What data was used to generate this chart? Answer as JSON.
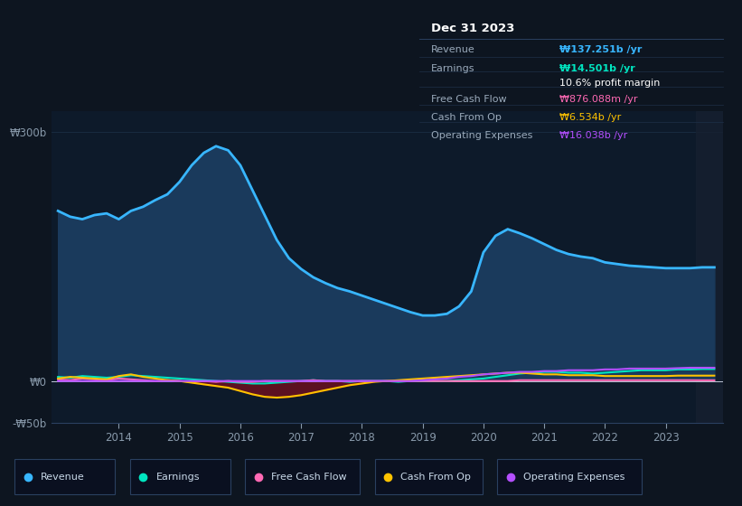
{
  "background_color": "#0d1520",
  "plot_bg_color": "#0d1a2a",
  "grid_color": "#1a2e44",
  "title_box": {
    "date": "Dec 31 2023",
    "rows": [
      {
        "label": "Revenue",
        "value": "₩137.251b /yr",
        "value_color": "#38b6ff"
      },
      {
        "label": "Earnings",
        "value": "₩14.501b /yr",
        "value_color": "#00e5c0"
      },
      {
        "label": "",
        "value": "10.6% profit margin",
        "value_color": "#ffffff"
      },
      {
        "label": "Free Cash Flow",
        "value": "₩876.088m /yr",
        "value_color": "#ff69b4"
      },
      {
        "label": "Cash From Op",
        "value": "₩6.534b /yr",
        "value_color": "#ffc300"
      },
      {
        "label": "Operating Expenses",
        "value": "₩16.038b /yr",
        "value_color": "#b44fff"
      }
    ]
  },
  "x_years": [
    2013.0,
    2013.2,
    2013.4,
    2013.6,
    2013.8,
    2014.0,
    2014.2,
    2014.4,
    2014.6,
    2014.8,
    2015.0,
    2015.2,
    2015.4,
    2015.6,
    2015.8,
    2016.0,
    2016.2,
    2016.4,
    2016.6,
    2016.8,
    2017.0,
    2017.2,
    2017.4,
    2017.6,
    2017.8,
    2018.0,
    2018.2,
    2018.4,
    2018.6,
    2018.8,
    2019.0,
    2019.2,
    2019.4,
    2019.6,
    2019.8,
    2020.0,
    2020.2,
    2020.4,
    2020.6,
    2020.8,
    2021.0,
    2021.2,
    2021.4,
    2021.6,
    2021.8,
    2022.0,
    2022.2,
    2022.4,
    2022.6,
    2022.8,
    2023.0,
    2023.2,
    2023.4,
    2023.6,
    2023.8
  ],
  "revenue": [
    205,
    198,
    195,
    200,
    202,
    195,
    205,
    210,
    218,
    225,
    240,
    260,
    275,
    283,
    278,
    260,
    230,
    200,
    170,
    148,
    135,
    125,
    118,
    112,
    108,
    103,
    98,
    93,
    88,
    83,
    79,
    79,
    81,
    90,
    108,
    155,
    175,
    183,
    178,
    172,
    165,
    158,
    153,
    150,
    148,
    143,
    141,
    139,
    138,
    137,
    136,
    136,
    136,
    137,
    137
  ],
  "earnings": [
    5,
    4,
    6,
    5,
    4,
    5,
    7,
    6,
    5,
    4,
    3,
    2,
    1,
    0,
    -1,
    -2,
    -3,
    -3,
    -2,
    -1,
    0,
    1,
    0,
    0,
    -1,
    0,
    0,
    0,
    -1,
    0,
    0,
    0,
    0,
    1,
    2,
    3,
    5,
    7,
    9,
    10,
    11,
    11,
    10,
    10,
    9,
    10,
    11,
    12,
    13,
    13,
    13,
    14,
    14,
    14.5,
    14.5
  ],
  "free_cash_flow": [
    2,
    1,
    3,
    2,
    1,
    3,
    2,
    1,
    0,
    1,
    0,
    -1,
    0,
    -1,
    0,
    -1,
    -1,
    0,
    0,
    0,
    0,
    1,
    0,
    0,
    0,
    0,
    0,
    0,
    0,
    0,
    0,
    0,
    0,
    0,
    0,
    0,
    0,
    0,
    1,
    1,
    1,
    1,
    1,
    1,
    1,
    1,
    1,
    1,
    1,
    1,
    1,
    1,
    1,
    0.9,
    0.9
  ],
  "cash_from_op": [
    3,
    5,
    4,
    3,
    2,
    6,
    8,
    5,
    3,
    1,
    0,
    -2,
    -4,
    -6,
    -8,
    -12,
    -16,
    -19,
    -20,
    -19,
    -17,
    -14,
    -11,
    -8,
    -5,
    -3,
    -1,
    0,
    1,
    2,
    3,
    4,
    5,
    6,
    7,
    8,
    9,
    10,
    10,
    9,
    8,
    8,
    7,
    7,
    7,
    6,
    6,
    6,
    6,
    6,
    6,
    6.5,
    6.5,
    6.5,
    6.5
  ],
  "operating_expenses": [
    0,
    0,
    0,
    0,
    0,
    0,
    0,
    0,
    0,
    0,
    0,
    0,
    0,
    0,
    0,
    0,
    0,
    0,
    0,
    0,
    0,
    0,
    0,
    0,
    0,
    0,
    0,
    0,
    0,
    0,
    1,
    2,
    3,
    5,
    6,
    8,
    9,
    10,
    11,
    11,
    12,
    12,
    13,
    13,
    13,
    14,
    14,
    15,
    15,
    15,
    15,
    15.5,
    16,
    16,
    16
  ],
  "revenue_color": "#38b6ff",
  "revenue_fill_color": "#1a3a5c",
  "earnings_color": "#00e5c0",
  "free_cash_flow_color": "#ff69b4",
  "cash_from_op_color": "#ffc300",
  "operating_expenses_color": "#b44fff",
  "cfo_neg_fill_color": "#6b1020",
  "ylim": [
    -50,
    325
  ],
  "yticks": [
    -50,
    0,
    300
  ],
  "ytick_labels": [
    "-₩50b",
    "₩0",
    "₩300b"
  ],
  "xtick_years": [
    2014,
    2015,
    2016,
    2017,
    2018,
    2019,
    2020,
    2021,
    2022,
    2023
  ],
  "legend_items": [
    {
      "label": "Revenue",
      "color": "#38b6ff"
    },
    {
      "label": "Earnings",
      "color": "#00e5c0"
    },
    {
      "label": "Free Cash Flow",
      "color": "#ff69b4"
    },
    {
      "label": "Cash From Op",
      "color": "#ffc300"
    },
    {
      "label": "Operating Expenses",
      "color": "#b44fff"
    }
  ]
}
